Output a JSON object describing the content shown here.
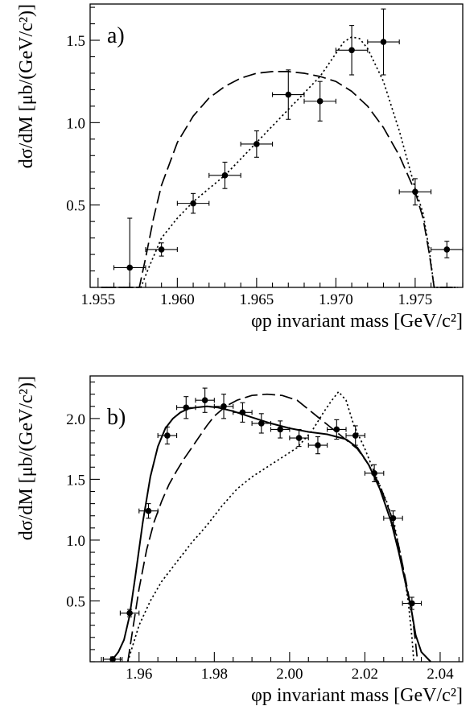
{
  "chart_data": [
    {
      "type": "scatter",
      "panel_label": "a)",
      "xlabel": "φp invariant mass [GeV/c²]",
      "ylabel": "dσ/dM [μb/(GeV/c²)]",
      "xlim": [
        1.9545,
        1.978
      ],
      "ylim": [
        0,
        1.72
      ],
      "xticks": [
        1.955,
        1.96,
        1.965,
        1.97,
        1.975
      ],
      "xtick_labels": [
        "1.955",
        "1.960",
        "1.965",
        "1.970",
        "1.975"
      ],
      "yticks": [
        0.5,
        1.0,
        1.5
      ],
      "ytick_labels": [
        "0.5",
        "1.0",
        "1.5"
      ],
      "grid": false,
      "series": [
        {
          "style": "points-with-error-bars",
          "x": [
            1.957,
            1.959,
            1.961,
            1.963,
            1.965,
            1.967,
            1.969,
            1.971,
            1.973,
            1.975,
            1.977
          ],
          "y": [
            0.12,
            0.23,
            0.51,
            0.68,
            0.87,
            1.17,
            1.13,
            1.44,
            1.49,
            0.58,
            0.23
          ],
          "xerr": [
            0.001,
            0.001,
            0.001,
            0.001,
            0.001,
            0.001,
            0.001,
            0.001,
            0.001,
            0.001,
            0.001
          ],
          "yerr": [
            0.3,
            0.04,
            0.06,
            0.08,
            0.08,
            0.15,
            0.12,
            0.15,
            0.2,
            0.08,
            0.05
          ]
        },
        {
          "style": "long-dashed",
          "x": [
            1.9552,
            1.9576,
            1.958,
            1.9585,
            1.959,
            1.96,
            1.961,
            1.962,
            1.963,
            1.964,
            1.965,
            1.966,
            1.967,
            1.968,
            1.969,
            1.97,
            1.971,
            1.972,
            1.973,
            1.974,
            1.975,
            1.9755,
            1.9759,
            1.9762,
            1.9777
          ],
          "y": [
            0,
            0,
            0.18,
            0.42,
            0.62,
            0.88,
            1.04,
            1.15,
            1.22,
            1.27,
            1.3,
            1.31,
            1.31,
            1.3,
            1.28,
            1.25,
            1.19,
            1.1,
            0.97,
            0.8,
            0.58,
            0.42,
            0.2,
            0,
            0
          ]
        },
        {
          "style": "dotted",
          "x": [
            1.9552,
            1.9577,
            1.9582,
            1.959,
            1.96,
            1.961,
            1.962,
            1.963,
            1.964,
            1.965,
            1.966,
            1.967,
            1.968,
            1.969,
            1.97,
            1.9705,
            1.971,
            1.9715,
            1.972,
            1.973,
            1.974,
            1.975,
            1.9755,
            1.9759,
            1.9762,
            1.9777
          ],
          "y": [
            0,
            0,
            0.12,
            0.3,
            0.42,
            0.52,
            0.6,
            0.68,
            0.78,
            0.88,
            0.98,
            1.08,
            1.18,
            1.28,
            1.42,
            1.49,
            1.52,
            1.51,
            1.45,
            1.25,
            0.95,
            0.6,
            0.45,
            0.22,
            0,
            0
          ]
        }
      ]
    },
    {
      "type": "scatter",
      "panel_label": "b)",
      "xlabel": "φp invariant mass [GeV/c²]",
      "ylabel": "dσ/dM [μb/(GeV/c²)]",
      "xlim": [
        1.947,
        2.046
      ],
      "ylim": [
        0,
        2.35
      ],
      "xticks": [
        1.96,
        1.98,
        2.0,
        2.02,
        2.04
      ],
      "xtick_labels": [
        "1.96",
        "1.98",
        "2.00",
        "2.02",
        "2.04"
      ],
      "yticks": [
        0.5,
        1.0,
        1.5,
        2.0
      ],
      "ytick_labels": [
        "0.5",
        "1.0",
        "1.5",
        "2.0"
      ],
      "grid": false,
      "series": [
        {
          "style": "points-with-error-bars",
          "x": [
            1.953,
            1.9575,
            1.9625,
            1.9675,
            1.9725,
            1.9775,
            1.9825,
            1.9875,
            1.9925,
            1.9975,
            2.0025,
            2.0075,
            2.0125,
            2.0175,
            2.0225,
            2.0275,
            2.0325
          ],
          "y": [
            0.02,
            0.4,
            1.24,
            1.86,
            2.09,
            2.15,
            2.1,
            2.05,
            1.96,
            1.91,
            1.84,
            1.78,
            1.91,
            1.86,
            1.55,
            1.18,
            0.48
          ],
          "xerr": [
            0.0025,
            0.0025,
            0.0025,
            0.0025,
            0.0025,
            0.0025,
            0.0025,
            0.0025,
            0.0025,
            0.0025,
            0.0025,
            0.0025,
            0.0025,
            0.0025,
            0.0025,
            0.0025,
            0.0025
          ],
          "yerr": [
            0.02,
            0.03,
            0.06,
            0.07,
            0.09,
            0.1,
            0.1,
            0.08,
            0.08,
            0.07,
            0.07,
            0.07,
            0.08,
            0.08,
            0.07,
            0.06,
            0.05
          ]
        },
        {
          "style": "solid",
          "x": [
            1.9525,
            1.9545,
            1.956,
            1.9575,
            1.959,
            1.961,
            1.963,
            1.965,
            1.967,
            1.969,
            1.971,
            1.973,
            1.975,
            1.978,
            1.981,
            1.985,
            1.99,
            1.995,
            2.0,
            2.005,
            2.01,
            2.015,
            2.018,
            2.021,
            2.024,
            2.027,
            2.029,
            2.031,
            2.0325,
            2.0335,
            2.035,
            2.0375
          ],
          "y": [
            0,
            0.08,
            0.18,
            0.38,
            0.7,
            1.15,
            1.52,
            1.77,
            1.92,
            2.0,
            2.05,
            2.08,
            2.09,
            2.1,
            2.09,
            2.06,
            2.01,
            1.96,
            1.92,
            1.89,
            1.87,
            1.83,
            1.76,
            1.62,
            1.42,
            1.15,
            0.9,
            0.62,
            0.4,
            0.22,
            0.08,
            0
          ]
        },
        {
          "style": "long-dashed",
          "x": [
            1.957,
            1.958,
            1.96,
            1.962,
            1.964,
            1.966,
            1.968,
            1.97,
            1.972,
            1.974,
            1.976,
            1.978,
            1.98,
            1.983,
            1.986,
            1.99,
            1.994,
            1.998,
            2.002,
            2.006,
            2.01,
            2.014,
            2.018,
            2.021,
            2.024,
            2.027,
            2.029,
            2.031,
            2.0325,
            2.0335,
            2.034
          ],
          "y": [
            0,
            0.2,
            0.6,
            0.92,
            1.15,
            1.32,
            1.46,
            1.57,
            1.67,
            1.76,
            1.85,
            1.94,
            2.02,
            2.1,
            2.15,
            2.19,
            2.2,
            2.19,
            2.15,
            2.05,
            1.95,
            1.85,
            1.75,
            1.62,
            1.45,
            1.2,
            0.95,
            0.65,
            0.4,
            0.15,
            0
          ]
        },
        {
          "style": "dotted",
          "x": [
            1.957,
            1.958,
            1.96,
            1.963,
            1.966,
            1.97,
            1.974,
            1.978,
            1.982,
            1.986,
            1.99,
            1.994,
            1.998,
            2.002,
            2.006,
            2.009,
            2.011,
            2.013,
            2.015,
            2.017,
            2.02,
            2.023,
            2.026,
            2.028,
            2.03,
            2.0315,
            2.0325,
            2.033
          ],
          "y": [
            0,
            0.1,
            0.3,
            0.5,
            0.66,
            0.82,
            0.98,
            1.12,
            1.28,
            1.42,
            1.52,
            1.6,
            1.68,
            1.76,
            1.9,
            2.05,
            2.14,
            2.22,
            2.15,
            1.95,
            1.75,
            1.52,
            1.3,
            1.1,
            0.8,
            0.5,
            0.2,
            0
          ]
        }
      ]
    }
  ]
}
